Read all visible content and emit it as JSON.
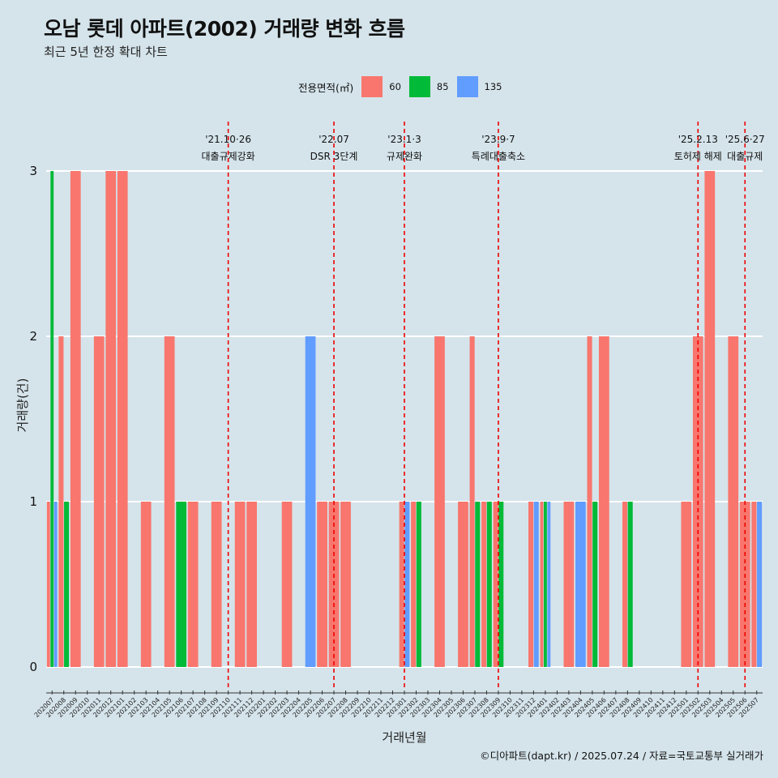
{
  "title": "오남 롯데 아파트(2002) 거래량 변화 흐름",
  "subtitle": "최근 5년 한정 확대 차트",
  "caption": "©디아파트(dapt.kr) / 2025.07.24 / 자료=국토교통부 실거래가",
  "legend": {
    "title": "전용면적(㎡)",
    "items": [
      {
        "label": "60",
        "color": "#F8766D"
      },
      {
        "label": "85",
        "color": "#00BA38"
      },
      {
        "label": "135",
        "color": "#619CFF"
      }
    ]
  },
  "chart_data": {
    "type": "bar",
    "xlabel": "거래년월",
    "ylabel": "거래량(건)",
    "ylim": [
      0,
      3
    ],
    "yticks": [
      0,
      1,
      2,
      3
    ],
    "grid": true,
    "legend_position": "top",
    "categories": [
      "202007",
      "202008",
      "202009",
      "202010",
      "202011",
      "202012",
      "202101",
      "202102",
      "202103",
      "202104",
      "202105",
      "202106",
      "202107",
      "202108",
      "202109",
      "202110",
      "202111",
      "202112",
      "202201",
      "202202",
      "202203",
      "202204",
      "202205",
      "202206",
      "202207",
      "202208",
      "202209",
      "202210",
      "202211",
      "202212",
      "202301",
      "202302",
      "202303",
      "202304",
      "202305",
      "202306",
      "202307",
      "202308",
      "202309",
      "202310",
      "202311",
      "202312",
      "202401",
      "202402",
      "202403",
      "202404",
      "202405",
      "202406",
      "202407",
      "202408",
      "202409",
      "202410",
      "202411",
      "202412",
      "202501",
      "202502",
      "202503",
      "202504",
      "202505",
      "202506",
      "202507"
    ],
    "series": [
      {
        "name": "60",
        "color": "#F8766D",
        "values": [
          1,
          2,
          3,
          0,
          2,
          3,
          3,
          0,
          1,
          0,
          2,
          0,
          1,
          0,
          1,
          0,
          1,
          1,
          0,
          0,
          1,
          0,
          0,
          1,
          1,
          1,
          0,
          0,
          0,
          0,
          1,
          1,
          0,
          2,
          0,
          1,
          2,
          1,
          1,
          0,
          0,
          1,
          1,
          0,
          1,
          0,
          2,
          2,
          0,
          1,
          0,
          0,
          0,
          0,
          1,
          2,
          3,
          0,
          2,
          1,
          1
        ]
      },
      {
        "name": "85",
        "color": "#00BA38",
        "values": [
          3,
          1,
          0,
          0,
          0,
          0,
          0,
          0,
          0,
          0,
          0,
          1,
          0,
          0,
          0,
          0,
          0,
          0,
          0,
          0,
          0,
          0,
          0,
          0,
          0,
          0,
          0,
          0,
          0,
          0,
          0,
          1,
          0,
          0,
          0,
          0,
          1,
          1,
          1,
          0,
          0,
          0,
          1,
          0,
          0,
          0,
          1,
          0,
          0,
          1,
          0,
          0,
          0,
          0,
          0,
          0,
          0,
          0,
          0,
          0,
          0
        ]
      },
      {
        "name": "135",
        "color": "#619CFF",
        "values": [
          1,
          0,
          0,
          0,
          0,
          0,
          0,
          0,
          0,
          0,
          0,
          0,
          0,
          0,
          0,
          0,
          0,
          0,
          0,
          0,
          0,
          0,
          2,
          0,
          0,
          0,
          0,
          0,
          0,
          0,
          1,
          0,
          0,
          0,
          0,
          0,
          0,
          0,
          0,
          0,
          0,
          1,
          1,
          0,
          0,
          1,
          0,
          0,
          0,
          0,
          0,
          0,
          0,
          0,
          0,
          0,
          0,
          0,
          0,
          0,
          1
        ]
      }
    ],
    "annotations": [
      {
        "at": "202110",
        "date": "'21.10·26",
        "label": "대출규제강화"
      },
      {
        "at": "202207",
        "date": "'22.07",
        "label": "DSR 3단계"
      },
      {
        "at": "202301",
        "date": "'23.1·3",
        "label": "규제완화"
      },
      {
        "at": "202309",
        "date": "'23.9·7",
        "label": "특례대출축소"
      },
      {
        "at": "202502",
        "date": "'25.2.13",
        "label": "토허제 해제"
      },
      {
        "at": "202506",
        "date": "'25.6·27",
        "label": "대출규제"
      }
    ]
  }
}
